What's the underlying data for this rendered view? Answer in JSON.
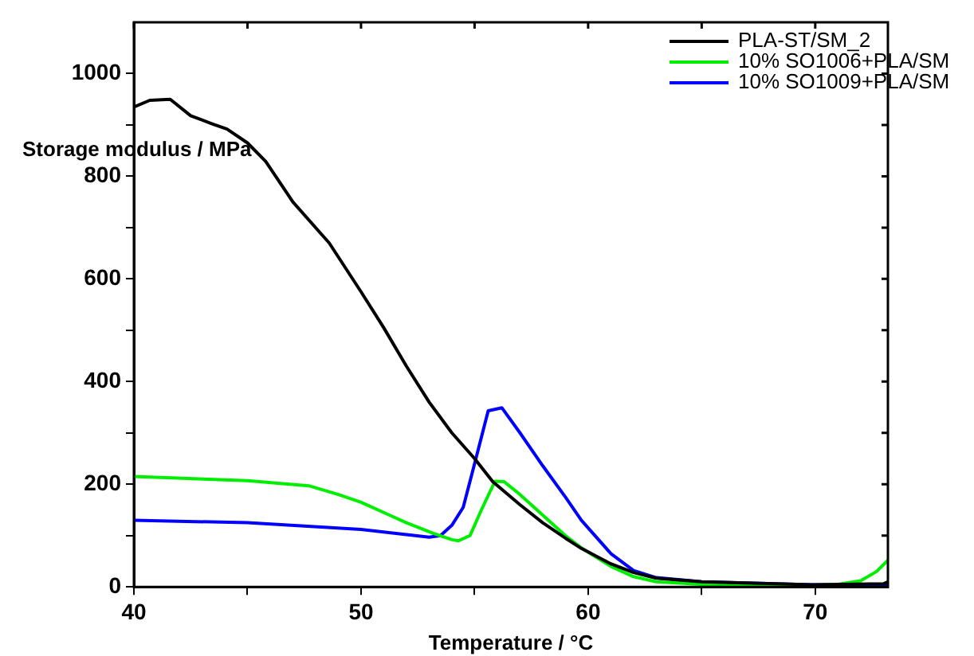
{
  "chart_data": {
    "type": "line",
    "xlabel": "Temperature / °C",
    "ylabel": "Storage modulus / MPa",
    "xlim": [
      40,
      73.2
    ],
    "ylim": [
      0,
      1100
    ],
    "xticks": [
      40,
      {
        "value": 45,
        "label": null
      },
      50,
      {
        "value": 55,
        "label": null
      },
      60,
      {
        "value": 65,
        "label": null
      },
      70
    ],
    "yticks": [
      0,
      {
        "value": 100,
        "label": null
      },
      200,
      {
        "value": 300,
        "label": null
      },
      400,
      {
        "value": 500,
        "label": null
      },
      600,
      {
        "value": 700,
        "label": null
      },
      800,
      {
        "value": 900,
        "label": null
      },
      1000
    ],
    "grid": false,
    "legend": "top right",
    "marker": "none",
    "line_style": "solid",
    "series": [
      {
        "name": "PLA-ST/SM_2",
        "color": "#000000",
        "x": [
          40,
          40.7,
          41.6,
          42.5,
          43.4,
          44.1,
          45,
          45.8,
          47,
          48.6,
          50,
          51,
          52,
          53,
          54,
          55,
          55.8,
          57,
          58,
          59,
          59.7,
          61,
          62,
          63,
          65,
          70,
          73,
          73.2
        ],
        "values": [
          935,
          948,
          950,
          918,
          903,
          892,
          865,
          829,
          750,
          670,
          575,
          505,
          430,
          360,
          300,
          250,
          205,
          160,
          125,
          95,
          75,
          45,
          28,
          17,
          10,
          4,
          6,
          10
        ]
      },
      {
        "name": "10% SO1006+PLA/SM",
        "color": "#00ee00",
        "x": [
          40,
          45,
          47.7,
          49,
          50,
          51,
          52,
          53.2,
          54,
          54.3,
          54.8,
          55.3,
          55.9,
          56.3,
          57,
          58,
          59,
          59.7,
          61,
          62,
          63,
          65,
          70,
          71,
          72,
          72.7,
          73.2
        ],
        "values": [
          215,
          207,
          197,
          180,
          165,
          145,
          125,
          104,
          92,
          90,
          100,
          150,
          206,
          205,
          180,
          140,
          100,
          76,
          40,
          20,
          10,
          5,
          3,
          5,
          12,
          30,
          52
        ]
      },
      {
        "name": "10% SO1009+PLA/SM",
        "color": "#0000ff",
        "x": [
          40,
          45,
          50,
          52,
          53,
          53.5,
          54,
          54.5,
          55,
          55.6,
          56.2,
          57,
          58,
          59,
          59.7,
          60,
          61,
          62,
          63,
          65,
          70,
          73.2
        ],
        "values": [
          130,
          125,
          112,
          102,
          97,
          100,
          120,
          155,
          240,
          343,
          349,
          300,
          236,
          175,
          130,
          115,
          65,
          32,
          18,
          10,
          4,
          5
        ]
      }
    ]
  }
}
